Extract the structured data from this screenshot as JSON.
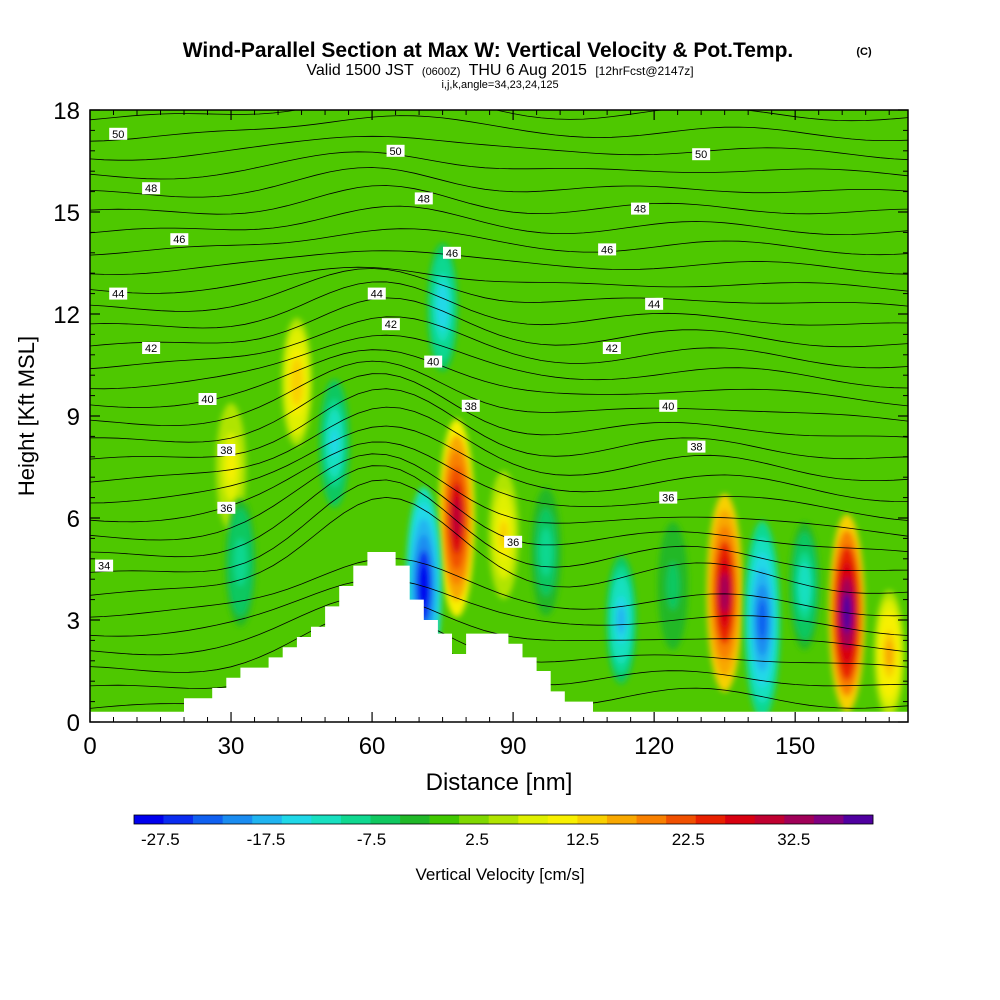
{
  "chart_data": {
    "type": "heatmap",
    "title": "Wind-Parallel Section at Max W: Vertical Velocity & Pot.Temp.",
    "title_mark": "(C)",
    "subtitle_valid": "Valid 1500 JST",
    "subtitle_utc": "(0600Z)",
    "subtitle_date": "THU 6 Aug 2015",
    "subtitle_fcst": "[12hrFcst@2147z]",
    "subtitle_indices": "i,j,k,angle=34,23,24,125",
    "xlabel": "Distance [nm]",
    "ylabel": "Height [Kft MSL]",
    "xlim": [
      0,
      174
    ],
    "ylim": [
      0,
      18
    ],
    "x_ticks": [
      0,
      30,
      60,
      90,
      120,
      150
    ],
    "y_ticks": [
      0,
      3,
      6,
      9,
      12,
      15,
      18
    ],
    "grid": false,
    "colorbar_label": "Vertical Velocity [cm/s]",
    "colorbar_ticks": [
      "-27.5",
      "-17.5",
      "-7.5",
      "2.5",
      "12.5",
      "22.5",
      "32.5"
    ],
    "colorbar_range": [
      -30,
      40
    ],
    "colorbar_colors": [
      "#0000ee",
      "#0a2cf0",
      "#1060f0",
      "#1a8cf0",
      "#20b4f0",
      "#20d8e8",
      "#18e0c0",
      "#10d890",
      "#10c860",
      "#20b828",
      "#40c800",
      "#80d800",
      "#b0e400",
      "#e0f000",
      "#f8f000",
      "#f8d000",
      "#f8a800",
      "#f88000",
      "#f05000",
      "#e82000",
      "#d80010",
      "#c00030",
      "#a00058",
      "#800080",
      "#5000a0"
    ],
    "field_colors": {
      "background": "#4ec800",
      "terrain": "#ffffff"
    },
    "terrain_profile": {
      "x": [
        0,
        20,
        20,
        26,
        26,
        29,
        29,
        32,
        32,
        38,
        38,
        41,
        41,
        44,
        44,
        47,
        47,
        50,
        50,
        53,
        53,
        56,
        56,
        59,
        59,
        65,
        65,
        68,
        68,
        71,
        71,
        74,
        74,
        77,
        77,
        80,
        80,
        83,
        83,
        86,
        86,
        89,
        89,
        92,
        92,
        95,
        95,
        98,
        98,
        101,
        101,
        107,
        107,
        174
      ],
      "z": [
        0.3,
        0.3,
        0.7,
        0.7,
        1.0,
        1.0,
        1.3,
        1.3,
        1.6,
        1.6,
        1.9,
        1.9,
        2.2,
        2.2,
        2.5,
        2.5,
        2.8,
        2.8,
        3.4,
        3.4,
        4.0,
        4.0,
        4.6,
        4.6,
        5.0,
        5.0,
        4.6,
        4.6,
        3.6,
        3.6,
        3.0,
        3.0,
        2.6,
        2.6,
        2.0,
        2.0,
        2.6,
        2.6,
        2.6,
        2.6,
        2.6,
        2.6,
        2.3,
        2.3,
        1.9,
        1.9,
        1.5,
        1.5,
        0.9,
        0.9,
        0.6,
        0.6,
        0.3,
        0.3
      ]
    },
    "velocity_cells": [
      {
        "x": 78,
        "z": 6.0,
        "value": 30
      },
      {
        "x": 135,
        "z": 3.8,
        "value": 32
      },
      {
        "x": 161,
        "z": 3.2,
        "value": 38
      },
      {
        "x": 44,
        "z": 10.0,
        "value": 14
      },
      {
        "x": 30,
        "z": 7.5,
        "value": 10
      },
      {
        "x": 88,
        "z": 5.5,
        "value": 12
      },
      {
        "x": 170,
        "z": 2.0,
        "value": 15
      },
      {
        "x": 71,
        "z": 4.0,
        "value": -28
      },
      {
        "x": 143,
        "z": 3.0,
        "value": -22
      },
      {
        "x": 113,
        "z": 3.0,
        "value": -17
      },
      {
        "x": 52,
        "z": 8.2,
        "value": -14
      },
      {
        "x": 75,
        "z": 12.2,
        "value": -16
      },
      {
        "x": 32,
        "z": 4.7,
        "value": -10
      },
      {
        "x": 97,
        "z": 5.0,
        "value": -9
      },
      {
        "x": 124,
        "z": 4.0,
        "value": -6
      },
      {
        "x": 152,
        "z": 4.0,
        "value": -12
      }
    ],
    "theta_contours": [
      34,
      36,
      38,
      40,
      42,
      44,
      46,
      48,
      50
    ],
    "contour_labels": [
      {
        "text": "50",
        "x": 6,
        "z": 17.3
      },
      {
        "text": "50",
        "x": 65,
        "z": 16.8
      },
      {
        "text": "50",
        "x": 130,
        "z": 16.7
      },
      {
        "text": "48",
        "x": 13,
        "z": 15.7
      },
      {
        "text": "48",
        "x": 71,
        "z": 15.4
      },
      {
        "text": "48",
        "x": 117,
        "z": 15.1
      },
      {
        "text": "46",
        "x": 19,
        "z": 14.2
      },
      {
        "text": "46",
        "x": 77,
        "z": 13.8
      },
      {
        "text": "46",
        "x": 110,
        "z": 13.9
      },
      {
        "text": "44",
        "x": 6,
        "z": 12.6
      },
      {
        "text": "44",
        "x": 61,
        "z": 12.6
      },
      {
        "text": "44",
        "x": 120,
        "z": 12.3
      },
      {
        "text": "42",
        "x": 13,
        "z": 11.0
      },
      {
        "text": "42",
        "x": 64,
        "z": 11.7
      },
      {
        "text": "42",
        "x": 111,
        "z": 11.0
      },
      {
        "text": "40",
        "x": 25,
        "z": 9.5
      },
      {
        "text": "40",
        "x": 73,
        "z": 10.6
      },
      {
        "text": "40",
        "x": 123,
        "z": 9.3
      },
      {
        "text": "38",
        "x": 29,
        "z": 8.0
      },
      {
        "text": "38",
        "x": 81,
        "z": 9.3
      },
      {
        "text": "38",
        "x": 129,
        "z": 8.1
      },
      {
        "text": "36",
        "x": 29,
        "z": 6.3
      },
      {
        "text": "36",
        "x": 90,
        "z": 5.3
      },
      {
        "text": "36",
        "x": 123,
        "z": 6.6
      },
      {
        "text": "34",
        "x": 3,
        "z": 4.6
      }
    ]
  }
}
